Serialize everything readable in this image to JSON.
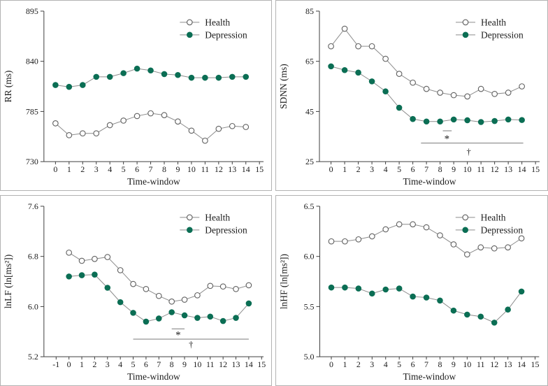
{
  "figure": {
    "legend": {
      "health_label": "Health",
      "depression_label": "Depression"
    },
    "colors": {
      "depression_fill": "#0b6e54",
      "health_fill": "#ffffff",
      "marker_stroke": "#5f5f5f",
      "series_line": "#8c8c8c",
      "axis": "#3f3f3f",
      "text": "#1c1c1c",
      "sig_line": "#7a7a7a",
      "panel_border": "#b3b3b3"
    }
  },
  "chart_data": [
    {
      "name": "rr",
      "type": "line",
      "title": "",
      "ylabel": "RR (ms)",
      "xlabel": "Time-window",
      "ylim": [
        730,
        895
      ],
      "yticks": [
        730,
        785,
        840,
        895
      ],
      "ytick_labels": [
        "730",
        "785",
        "840",
        "895"
      ],
      "xlim": [
        -0.85,
        15.3
      ],
      "xticks": [
        0,
        1,
        2,
        3,
        4,
        5,
        6,
        7,
        8,
        9,
        10,
        11,
        12,
        13,
        14,
        15
      ],
      "x": [
        0,
        1,
        2,
        3,
        4,
        5,
        6,
        7,
        8,
        9,
        10,
        11,
        12,
        13,
        14
      ],
      "series": [
        {
          "name": "Health",
          "marker": "open",
          "values": [
            772,
            759,
            761,
            761,
            770,
            775,
            780,
            783,
            781,
            774,
            764,
            753,
            766,
            769,
            768
          ]
        },
        {
          "name": "Depression",
          "marker": "filled",
          "values": [
            814,
            812,
            814,
            823,
            823,
            827,
            832,
            830,
            826,
            825,
            822,
            822,
            822,
            823,
            823
          ]
        }
      ],
      "annotations": []
    },
    {
      "name": "sdnn",
      "type": "line",
      "title": "",
      "ylabel": "SDNN (ms)",
      "xlabel": "Time-window",
      "ylim": [
        25,
        85
      ],
      "yticks": [
        25,
        45,
        65,
        85
      ],
      "ytick_labels": [
        "25",
        "45",
        "65",
        "85"
      ],
      "xlim": [
        -0.85,
        15.3
      ],
      "xticks": [
        0,
        1,
        2,
        3,
        4,
        5,
        6,
        7,
        8,
        9,
        10,
        11,
        12,
        13,
        14,
        15
      ],
      "x": [
        0,
        1,
        2,
        3,
        4,
        5,
        6,
        7,
        8,
        9,
        10,
        11,
        12,
        13,
        14
      ],
      "series": [
        {
          "name": "Health",
          "marker": "open",
          "values": [
            71,
            78,
            71,
            71,
            66,
            60,
            56.5,
            54,
            52.5,
            51.5,
            51,
            54,
            52,
            52.5,
            55
          ]
        },
        {
          "name": "Depression",
          "marker": "filled",
          "values": [
            63,
            61.5,
            60.5,
            57,
            53,
            46.5,
            42,
            41,
            41,
            41.8,
            41.5,
            40.8,
            41.2,
            41.8,
            41.6
          ]
        }
      ],
      "annotations": [
        {
          "kind": "sigline",
          "x1": 6.6,
          "x2": 14.1,
          "y": 32.4
        },
        {
          "kind": "sigline",
          "x1": 8.2,
          "x2": 8.85,
          "y": 37.3
        },
        {
          "kind": "sigtext",
          "x": 8.5,
          "y": 34.2,
          "glyph": "*",
          "size": 15
        },
        {
          "kind": "sigtext",
          "x": 10.1,
          "y": 29.2,
          "glyph": "†",
          "size": 12.5
        }
      ]
    },
    {
      "name": "lnlf",
      "type": "line",
      "title": "",
      "ylabel": "lnLF (ln[ms²])",
      "xlabel": "Time-window",
      "ylim": [
        5.2,
        7.6
      ],
      "yticks": [
        5.2,
        6.0,
        6.8,
        7.6
      ],
      "ytick_labels": [
        "5.2",
        "6.0",
        "6.8",
        "7.6"
      ],
      "xlim": [
        -1.95,
        15.15
      ],
      "xticks": [
        -1,
        0,
        1,
        2,
        3,
        4,
        5,
        6,
        7,
        8,
        9,
        10,
        11,
        12,
        13,
        14,
        15
      ],
      "x": [
        0,
        1,
        2,
        3,
        4,
        5,
        6,
        7,
        8,
        9,
        10,
        11,
        12,
        13,
        14
      ],
      "series": [
        {
          "name": "Health",
          "marker": "open",
          "values": [
            6.86,
            6.73,
            6.76,
            6.79,
            6.58,
            6.36,
            6.28,
            6.17,
            6.08,
            6.11,
            6.18,
            6.33,
            6.32,
            6.28,
            6.34
          ]
        },
        {
          "name": "Depression",
          "marker": "filled",
          "values": [
            6.48,
            6.5,
            6.51,
            6.3,
            6.07,
            5.9,
            5.76,
            5.81,
            5.91,
            5.86,
            5.82,
            5.84,
            5.77,
            5.82,
            6.05
          ]
        }
      ],
      "annotations": [
        {
          "kind": "sigline",
          "x1": 5.0,
          "x2": 14.0,
          "y": 5.48
        },
        {
          "kind": "sigline",
          "x1": 8.0,
          "x2": 9.0,
          "y": 5.645
        },
        {
          "kind": "sigtext",
          "x": 8.5,
          "y": 5.555,
          "glyph": "*",
          "size": 15
        },
        {
          "kind": "sigtext",
          "x": 9.5,
          "y": 5.405,
          "glyph": "†",
          "size": 12.5
        }
      ]
    },
    {
      "name": "lnhf",
      "type": "line",
      "title": "",
      "ylabel": "lnHF (ln[ms²])",
      "xlabel": "Time-window",
      "ylim": [
        5.0,
        6.5
      ],
      "yticks": [
        5.0,
        5.5,
        6.0,
        6.5
      ],
      "ytick_labels": [
        "5.0",
        "5.5",
        "6.0",
        "6.5"
      ],
      "xlim": [
        -0.85,
        15.3
      ],
      "xticks": [
        0,
        1,
        2,
        3,
        4,
        5,
        6,
        7,
        8,
        9,
        10,
        11,
        12,
        13,
        14,
        15
      ],
      "x": [
        0,
        1,
        2,
        3,
        4,
        5,
        6,
        7,
        8,
        9,
        10,
        11,
        12,
        13,
        14
      ],
      "series": [
        {
          "name": "Health",
          "marker": "open",
          "values": [
            6.15,
            6.15,
            6.17,
            6.2,
            6.27,
            6.32,
            6.32,
            6.29,
            6.21,
            6.12,
            6.02,
            6.09,
            6.08,
            6.09,
            6.18
          ]
        },
        {
          "name": "Depression",
          "marker": "filled",
          "values": [
            5.69,
            5.69,
            5.68,
            5.63,
            5.67,
            5.68,
            5.6,
            5.59,
            5.56,
            5.46,
            5.42,
            5.4,
            5.34,
            5.47,
            5.65
          ]
        }
      ],
      "annotations": []
    }
  ]
}
